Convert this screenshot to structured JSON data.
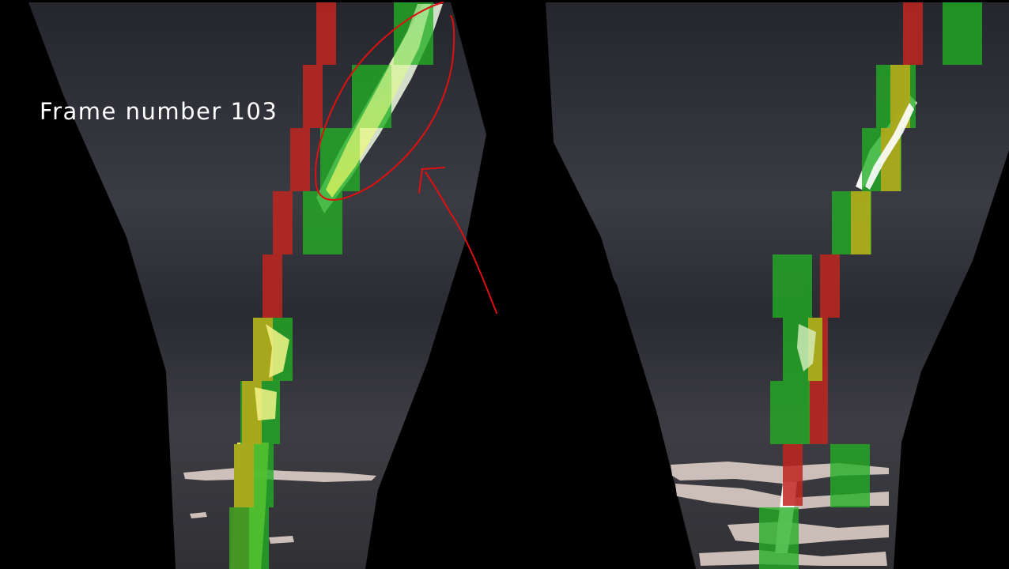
{
  "overlay": {
    "frame_label": "Frame number 103"
  },
  "colors": {
    "left_window": "#c0261f",
    "right_window": "#22b024",
    "overlap_window": "#b8a81a",
    "annotation": "#e01010",
    "road_dark": "#24252c",
    "lane_paint": "#f2f28a"
  },
  "windows": {
    "rows": 9,
    "left_lane_red_count": 9,
    "left_lane_green_count": 8,
    "right_lane_red_count": 8,
    "right_lane_green_count": 9
  }
}
